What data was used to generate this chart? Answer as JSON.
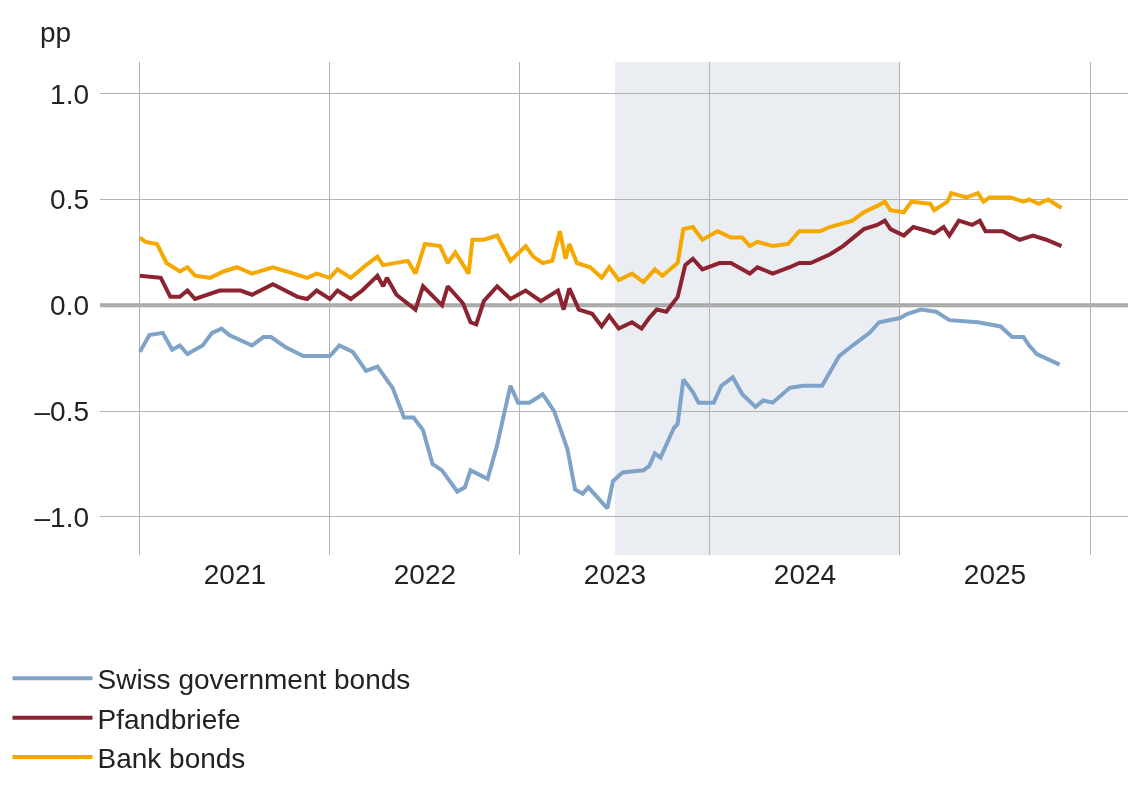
{
  "chart_data": {
    "type": "line",
    "ylabel": "pp",
    "xlim": [
      2020.79,
      2026.2
    ],
    "ylim": [
      -1.18,
      1.15
    ],
    "xticks": [
      {
        "value": 2021,
        "label": null
      },
      {
        "value": 2022,
        "label": null
      },
      {
        "value": 2023,
        "label": null
      },
      {
        "value": 2024,
        "label": null
      },
      {
        "value": 2025,
        "label": null
      },
      {
        "value": 2026,
        "label": null
      },
      {
        "value": 2021.5,
        "label": "2021"
      },
      {
        "value": 2022.5,
        "label": "2022"
      },
      {
        "value": 2023.5,
        "label": "2023"
      },
      {
        "value": 2024.5,
        "label": "2024"
      },
      {
        "value": 2025.5,
        "label": "2025"
      }
    ],
    "yticks": [
      {
        "value": -1.0,
        "label": "–1.0"
      },
      {
        "value": -0.5,
        "label": "–0.5"
      },
      {
        "value": 0.0,
        "label": "0.0"
      },
      {
        "value": 0.5,
        "label": "0.5"
      },
      {
        "value": 1.0,
        "label": "1.0"
      }
    ],
    "grid": true,
    "legend": "bottom",
    "marker": "none",
    "line_style": "solid",
    "ref_lines": [
      {
        "axis": "y",
        "value": 0,
        "color": "#a6a6a6"
      }
    ],
    "bands": [
      {
        "axis": "x",
        "from": 2023.5,
        "to": 2025.0,
        "color": "#eaeef2"
      }
    ],
    "series": [
      {
        "name": "Swiss government bonds",
        "color": "#7fa3c8",
        "x": [
          2021.0,
          2021.05,
          2021.12,
          2021.17,
          2021.21,
          2021.25,
          2021.33,
          2021.38,
          2021.43,
          2021.47,
          2021.59,
          2021.65,
          2021.69,
          2021.77,
          2021.86,
          2022.0,
          2022.05,
          2022.12,
          2022.19,
          2022.25,
          2022.33,
          2022.39,
          2022.44,
          2022.49,
          2022.54,
          2022.59,
          2022.67,
          2022.71,
          2022.74,
          2022.83,
          2022.88,
          2022.95,
          2022.99,
          2023.05,
          2023.12,
          2023.18,
          2023.25,
          2023.29,
          2023.33,
          2023.36,
          2023.41,
          2023.46,
          2023.49,
          2023.54,
          2023.65,
          2023.68,
          2023.71,
          2023.74,
          2023.81,
          2023.83,
          2023.86,
          2023.91,
          2023.94,
          2024.02,
          2024.06,
          2024.12,
          2024.17,
          2024.24,
          2024.28,
          2024.33,
          2024.42,
          2024.49,
          2024.59,
          2024.68,
          2024.75,
          2024.84,
          2024.89,
          2025.0,
          2025.04,
          2025.11,
          2025.19,
          2025.26,
          2025.41,
          2025.53,
          2025.59,
          2025.65,
          2025.68,
          2025.72,
          2025.84
        ],
        "values": [
          -0.22,
          -0.14,
          -0.13,
          -0.21,
          -0.19,
          -0.23,
          -0.19,
          -0.13,
          -0.11,
          -0.14,
          -0.19,
          -0.15,
          -0.15,
          -0.2,
          -0.24,
          -0.24,
          -0.19,
          -0.22,
          -0.31,
          -0.29,
          -0.39,
          -0.53,
          -0.53,
          -0.59,
          -0.75,
          -0.78,
          -0.88,
          -0.86,
          -0.78,
          -0.82,
          -0.66,
          -0.38,
          -0.46,
          -0.46,
          -0.42,
          -0.5,
          -0.68,
          -0.87,
          -0.89,
          -0.86,
          -0.91,
          -0.96,
          -0.83,
          -0.79,
          -0.78,
          -0.76,
          -0.7,
          -0.72,
          -0.58,
          -0.56,
          -0.35,
          -0.41,
          -0.46,
          -0.46,
          -0.38,
          -0.34,
          -0.42,
          -0.48,
          -0.45,
          -0.46,
          -0.39,
          -0.38,
          -0.38,
          -0.24,
          -0.19,
          -0.13,
          -0.08,
          -0.06,
          -0.04,
          -0.02,
          -0.03,
          -0.07,
          -0.08,
          -0.1,
          -0.15,
          -0.15,
          -0.19,
          -0.23,
          -0.28
        ]
      },
      {
        "name": "Pfandbriefe",
        "color": "#8b2330",
        "x": [
          2021.0,
          2021.11,
          2021.16,
          2021.21,
          2021.25,
          2021.29,
          2021.42,
          2021.53,
          2021.59,
          2021.7,
          2021.83,
          2021.88,
          2021.93,
          2022.0,
          2022.04,
          2022.11,
          2022.17,
          2022.25,
          2022.28,
          2022.3,
          2022.35,
          2022.45,
          2022.49,
          2022.59,
          2022.62,
          2022.7,
          2022.74,
          2022.77,
          2022.81,
          2022.88,
          2022.95,
          2023.03,
          2023.11,
          2023.2,
          2023.23,
          2023.26,
          2023.31,
          2023.38,
          2023.43,
          2023.47,
          2023.52,
          2023.59,
          2023.64,
          2023.68,
          2023.72,
          2023.77,
          2023.83,
          2023.87,
          2023.91,
          2023.96,
          2024.05,
          2024.11,
          2024.21,
          2024.25,
          2024.33,
          2024.42,
          2024.47,
          2024.53,
          2024.63,
          2024.7,
          2024.81,
          2024.88,
          2024.92,
          2024.95,
          2025.02,
          2025.07,
          2025.15,
          2025.18,
          2025.23,
          2025.26,
          2025.31,
          2025.38,
          2025.42,
          2025.45,
          2025.54,
          2025.63,
          2025.7,
          2025.77,
          2025.85
        ],
        "values": [
          0.14,
          0.13,
          0.04,
          0.04,
          0.07,
          0.03,
          0.07,
          0.07,
          0.05,
          0.1,
          0.04,
          0.03,
          0.07,
          0.03,
          0.07,
          0.03,
          0.07,
          0.14,
          0.09,
          0.13,
          0.05,
          -0.02,
          0.09,
          0.0,
          0.09,
          0.01,
          -0.08,
          -0.09,
          0.02,
          0.09,
          0.03,
          0.07,
          0.02,
          0.07,
          -0.02,
          0.08,
          -0.02,
          -0.04,
          -0.1,
          -0.05,
          -0.11,
          -0.08,
          -0.11,
          -0.06,
          -0.02,
          -0.03,
          0.04,
          0.19,
          0.22,
          0.17,
          0.2,
          0.2,
          0.15,
          0.18,
          0.15,
          0.18,
          0.2,
          0.2,
          0.24,
          0.28,
          0.36,
          0.38,
          0.4,
          0.36,
          0.33,
          0.37,
          0.35,
          0.34,
          0.37,
          0.33,
          0.4,
          0.38,
          0.4,
          0.35,
          0.35,
          0.31,
          0.33,
          0.31,
          0.28
        ]
      },
      {
        "name": "Bank bonds",
        "color": "#f5a800",
        "x": [
          2021.0,
          2021.03,
          2021.09,
          2021.14,
          2021.21,
          2021.25,
          2021.29,
          2021.37,
          2021.44,
          2021.51,
          2021.59,
          2021.7,
          2021.81,
          2021.88,
          2021.93,
          2022.0,
          2022.04,
          2022.11,
          2022.19,
          2022.25,
          2022.28,
          2022.41,
          2022.45,
          2022.5,
          2022.58,
          2022.62,
          2022.66,
          2022.73,
          2022.75,
          2022.81,
          2022.88,
          2022.95,
          2023.03,
          2023.07,
          2023.12,
          2023.17,
          2023.21,
          2023.24,
          2023.26,
          2023.3,
          2023.37,
          2023.43,
          2023.47,
          2023.52,
          2023.59,
          2023.65,
          2023.71,
          2023.75,
          2023.83,
          2023.86,
          2023.91,
          2023.96,
          2024.04,
          2024.11,
          2024.17,
          2024.21,
          2024.25,
          2024.33,
          2024.41,
          2024.47,
          2024.58,
          2024.63,
          2024.75,
          2024.81,
          2024.88,
          2024.92,
          2024.95,
          2025.02,
          2025.06,
          2025.16,
          2025.18,
          2025.25,
          2025.27,
          2025.35,
          2025.41,
          2025.44,
          2025.47,
          2025.58,
          2025.65,
          2025.68,
          2025.73,
          2025.78,
          2025.85
        ],
        "values": [
          0.32,
          0.3,
          0.29,
          0.2,
          0.16,
          0.18,
          0.14,
          0.13,
          0.16,
          0.18,
          0.15,
          0.18,
          0.15,
          0.13,
          0.15,
          0.13,
          0.17,
          0.13,
          0.19,
          0.23,
          0.19,
          0.21,
          0.15,
          0.29,
          0.28,
          0.2,
          0.25,
          0.15,
          0.31,
          0.31,
          0.33,
          0.21,
          0.28,
          0.23,
          0.2,
          0.21,
          0.35,
          0.22,
          0.29,
          0.2,
          0.18,
          0.13,
          0.18,
          0.12,
          0.15,
          0.11,
          0.17,
          0.14,
          0.2,
          0.36,
          0.37,
          0.31,
          0.35,
          0.32,
          0.32,
          0.28,
          0.3,
          0.28,
          0.29,
          0.35,
          0.35,
          0.37,
          0.4,
          0.44,
          0.47,
          0.49,
          0.45,
          0.44,
          0.49,
          0.48,
          0.45,
          0.49,
          0.53,
          0.51,
          0.53,
          0.49,
          0.51,
          0.51,
          0.49,
          0.5,
          0.48,
          0.5,
          0.46
        ]
      }
    ]
  }
}
